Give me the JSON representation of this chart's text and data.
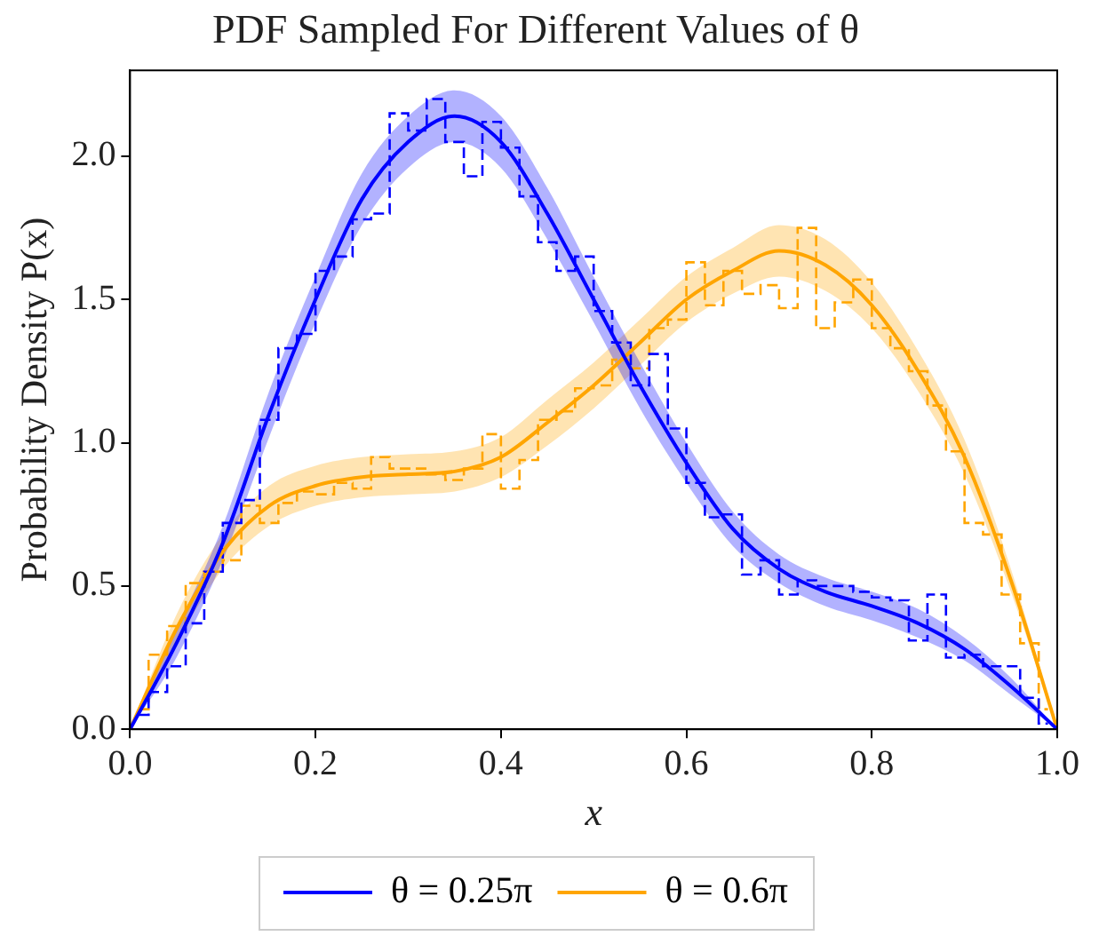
{
  "chart_data": {
    "type": "line",
    "title": "PDF Sampled For Different Values of θ",
    "xlabel": "x",
    "ylabel": "Probability Density P(x)",
    "xlim": [
      0,
      1
    ],
    "ylim": [
      0,
      2.3
    ],
    "xticks": [
      {
        "value": 0,
        "label": "0.0"
      },
      {
        "value": 0.2,
        "label": "0.2"
      },
      {
        "value": 0.4,
        "label": "0.4"
      },
      {
        "value": 0.6,
        "label": "0.6"
      },
      {
        "value": 0.8,
        "label": "0.8"
      },
      {
        "value": 1,
        "label": "1.0"
      }
    ],
    "yticks": [
      {
        "value": 0,
        "label": "0.0"
      },
      {
        "value": 0.5,
        "label": "0.5"
      },
      {
        "value": 1,
        "label": "1.0"
      },
      {
        "value": 1.5,
        "label": "1.5"
      },
      {
        "value": 2,
        "label": "2.0"
      }
    ],
    "grid": false,
    "legend": "bottom",
    "marker": "none",
    "series": [
      {
        "type": "step",
        "color": "#0000ff",
        "line_style": "dashed",
        "x": [
          0.01,
          0.03,
          0.05,
          0.07,
          0.09,
          0.11,
          0.13,
          0.15,
          0.17,
          0.19,
          0.21,
          0.23,
          0.25,
          0.27,
          0.29,
          0.31,
          0.33,
          0.35,
          0.37,
          0.39,
          0.41,
          0.43,
          0.45,
          0.47,
          0.49,
          0.51,
          0.53,
          0.55,
          0.57,
          0.59,
          0.61,
          0.63,
          0.65,
          0.67,
          0.69,
          0.71,
          0.73,
          0.75,
          0.77,
          0.79,
          0.81,
          0.83,
          0.85,
          0.87,
          0.89,
          0.91,
          0.93,
          0.95,
          0.97,
          0.99
        ],
        "values": [
          0.05,
          0.13,
          0.22,
          0.37,
          0.55,
          0.72,
          0.8,
          1.08,
          1.33,
          1.38,
          1.6,
          1.65,
          1.78,
          1.8,
          2.15,
          2.09,
          2.2,
          2.05,
          1.93,
          2.12,
          2.03,
          1.86,
          1.7,
          1.6,
          1.65,
          1.46,
          1.35,
          1.2,
          1.31,
          1.05,
          0.86,
          0.74,
          0.75,
          0.54,
          0.59,
          0.47,
          0.52,
          0.5,
          0.5,
          0.48,
          0.46,
          0.45,
          0.31,
          0.47,
          0.25,
          0.26,
          0.22,
          0.22,
          0.11,
          0.02
        ]
      },
      {
        "type": "step",
        "color": "#ffa500",
        "line_style": "dashed",
        "x": [
          0.01,
          0.03,
          0.05,
          0.07,
          0.09,
          0.11,
          0.13,
          0.15,
          0.17,
          0.19,
          0.21,
          0.23,
          0.25,
          0.27,
          0.29,
          0.31,
          0.33,
          0.35,
          0.37,
          0.39,
          0.41,
          0.43,
          0.45,
          0.47,
          0.49,
          0.51,
          0.53,
          0.55,
          0.57,
          0.59,
          0.61,
          0.63,
          0.65,
          0.67,
          0.69,
          0.71,
          0.73,
          0.75,
          0.77,
          0.79,
          0.81,
          0.83,
          0.85,
          0.87,
          0.89,
          0.91,
          0.93,
          0.95,
          0.97,
          0.99
        ],
        "values": [
          0.07,
          0.26,
          0.36,
          0.51,
          0.55,
          0.59,
          0.78,
          0.72,
          0.79,
          0.83,
          0.82,
          0.86,
          0.84,
          0.95,
          0.91,
          0.91,
          0.89,
          0.87,
          0.91,
          1.03,
          0.84,
          0.94,
          1.08,
          1.11,
          1.19,
          1.2,
          1.29,
          1.26,
          1.4,
          1.43,
          1.63,
          1.48,
          1.6,
          1.52,
          1.55,
          1.47,
          1.75,
          1.4,
          1.49,
          1.57,
          1.4,
          1.33,
          1.25,
          1.13,
          0.97,
          0.72,
          0.68,
          0.47,
          0.3,
          0.07
        ]
      },
      {
        "name": "θ = 0.25π",
        "color": "#0000ff",
        "line_style": "solid",
        "x": [
          0,
          0.05,
          0.1,
          0.15,
          0.2,
          0.25,
          0.3,
          0.35,
          0.4,
          0.45,
          0.5,
          0.55,
          0.6,
          0.65,
          0.7,
          0.75,
          0.8,
          0.85,
          0.9,
          0.95,
          1
        ],
        "values": [
          0,
          0.3,
          0.65,
          1.1,
          1.5,
          1.85,
          2.05,
          2.14,
          2.05,
          1.8,
          1.5,
          1.2,
          0.93,
          0.7,
          0.56,
          0.48,
          0.43,
          0.37,
          0.28,
          0.15,
          0
        ],
        "lower": [
          0,
          0.25,
          0.59,
          1.02,
          1.42,
          1.76,
          1.96,
          2.05,
          1.96,
          1.71,
          1.42,
          1.12,
          0.86,
          0.64,
          0.51,
          0.43,
          0.38,
          0.32,
          0.24,
          0.12,
          0
        ],
        "upper": [
          0,
          0.35,
          0.71,
          1.18,
          1.58,
          1.94,
          2.14,
          2.23,
          2.14,
          1.89,
          1.58,
          1.28,
          1,
          0.76,
          0.61,
          0.53,
          0.48,
          0.42,
          0.32,
          0.18,
          0
        ]
      },
      {
        "name": "θ = 0.6π",
        "color": "#ffa500",
        "line_style": "solid",
        "x": [
          0,
          0.05,
          0.1,
          0.15,
          0.2,
          0.25,
          0.3,
          0.35,
          0.4,
          0.45,
          0.5,
          0.55,
          0.6,
          0.65,
          0.7,
          0.75,
          0.8,
          0.85,
          0.9,
          0.95,
          1
        ],
        "values": [
          0,
          0.35,
          0.62,
          0.78,
          0.85,
          0.88,
          0.89,
          0.9,
          0.95,
          1.07,
          1.2,
          1.35,
          1.5,
          1.6,
          1.67,
          1.62,
          1.48,
          1.25,
          0.95,
          0.52,
          0
        ],
        "lower": [
          0,
          0.3,
          0.56,
          0.71,
          0.78,
          0.81,
          0.82,
          0.83,
          0.88,
          0.99,
          1.12,
          1.27,
          1.42,
          1.52,
          1.58,
          1.53,
          1.4,
          1.18,
          0.89,
          0.48,
          0
        ],
        "upper": [
          0,
          0.4,
          0.68,
          0.85,
          0.92,
          0.95,
          0.96,
          0.97,
          1.02,
          1.15,
          1.28,
          1.43,
          1.58,
          1.68,
          1.76,
          1.71,
          1.56,
          1.32,
          1.01,
          0.56,
          0
        ]
      }
    ]
  }
}
